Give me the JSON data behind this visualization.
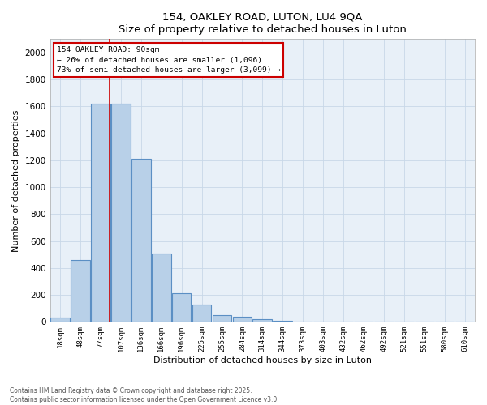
{
  "title1": "154, OAKLEY ROAD, LUTON, LU4 9QA",
  "title2": "Size of property relative to detached houses in Luton",
  "xlabel": "Distribution of detached houses by size in Luton",
  "ylabel": "Number of detached properties",
  "categories": [
    "18sqm",
    "48sqm",
    "77sqm",
    "107sqm",
    "136sqm",
    "166sqm",
    "196sqm",
    "225sqm",
    "255sqm",
    "284sqm",
    "314sqm",
    "344sqm",
    "373sqm",
    "403sqm",
    "432sqm",
    "462sqm",
    "492sqm",
    "521sqm",
    "551sqm",
    "580sqm",
    "610sqm"
  ],
  "values": [
    30,
    460,
    1620,
    1620,
    1210,
    510,
    210,
    130,
    50,
    40,
    20,
    10,
    5,
    2,
    1,
    1,
    0,
    0,
    0,
    0,
    0
  ],
  "bar_color": "#b8d0e8",
  "bar_edge_color": "#5b8fc4",
  "red_line_color": "#cc0000",
  "box_edge_color": "#cc0000",
  "grid_color": "#c8d8e8",
  "background_color": "#e8f0f8",
  "ylim": [
    0,
    2100
  ],
  "yticks": [
    0,
    200,
    400,
    600,
    800,
    1000,
    1200,
    1400,
    1600,
    1800,
    2000
  ],
  "annotation_text_line1": "154 OAKLEY ROAD: 90sqm",
  "annotation_text_line2": "← 26% of detached houses are smaller (1,096)",
  "annotation_text_line3": "73% of semi-detached houses are larger (3,099) →",
  "footer1": "Contains HM Land Registry data © Crown copyright and database right 2025.",
  "footer2": "Contains public sector information licensed under the Open Government Licence v3.0."
}
